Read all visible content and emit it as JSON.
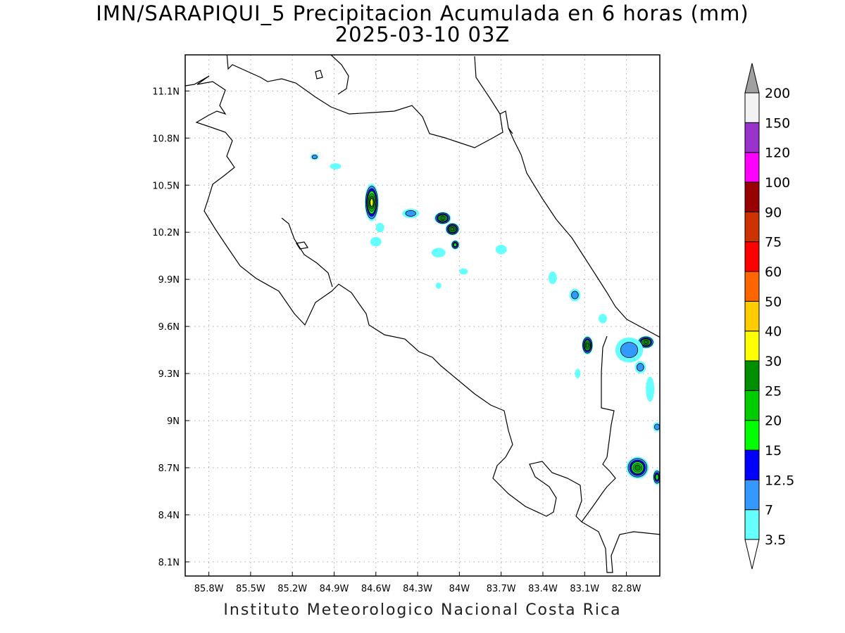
{
  "title": {
    "line1": "IMN/SARAPIQUI_5 Precipitacion Acumulada en 6 horas (mm)",
    "line2": "2025-03-10 03Z"
  },
  "footer": "Instituto Meteorologico Nacional Costa Rica",
  "map": {
    "lon_range": [
      -85.97,
      -82.56
    ],
    "lat_range": [
      8.01,
      11.33
    ],
    "lon_ticks": [
      {
        "value": -85.8,
        "label": "85.8W"
      },
      {
        "value": -85.5,
        "label": "85.5W"
      },
      {
        "value": -85.2,
        "label": "85.2W"
      },
      {
        "value": -84.9,
        "label": "84.9W"
      },
      {
        "value": -84.6,
        "label": "84.6W"
      },
      {
        "value": -84.3,
        "label": "84.3W"
      },
      {
        "value": -84.0,
        "label": "84W"
      },
      {
        "value": -83.7,
        "label": "83.7W"
      },
      {
        "value": -83.4,
        "label": "83.4W"
      },
      {
        "value": -83.1,
        "label": "83.1W"
      },
      {
        "value": -82.8,
        "label": "82.8W"
      }
    ],
    "lat_ticks": [
      {
        "value": 11.1,
        "label": "11.1N"
      },
      {
        "value": 10.8,
        "label": "10.8N"
      },
      {
        "value": 10.5,
        "label": "10.5N"
      },
      {
        "value": 10.2,
        "label": "10.2N"
      },
      {
        "value": 9.9,
        "label": "9.9N"
      },
      {
        "value": 9.6,
        "label": "9.6N"
      },
      {
        "value": 9.3,
        "label": "9.3N"
      },
      {
        "value": 9.0,
        "label": "9N"
      },
      {
        "value": 8.7,
        "label": "8.7N"
      },
      {
        "value": 8.4,
        "label": "8.4N"
      },
      {
        "value": 8.1,
        "label": "8.1N"
      }
    ],
    "grid": true
  },
  "colorbar": {
    "levels": [
      "3.5",
      "7",
      "12.5",
      "15",
      "20",
      "25",
      "30",
      "40",
      "50",
      "60",
      "75",
      "90",
      "100",
      "120",
      "150",
      "200"
    ],
    "colors": [
      "#66ffff",
      "#3399ff",
      "#0000ff",
      "#00ff00",
      "#00cc00",
      "#008f00",
      "#ffff00",
      "#ffcc00",
      "#ff6600",
      "#ff0000",
      "#cc3300",
      "#990000",
      "#ff00ff",
      "#9933cc",
      "#f2f2f2"
    ],
    "under_color": "#ffffff",
    "over_color": "#a0a0a0"
  },
  "precip_cells": [
    {
      "lon": -84.63,
      "lat": 10.39,
      "rx": 0.05,
      "ry": 0.12,
      "level": 30
    },
    {
      "lon": -84.12,
      "lat": 10.29,
      "rx": 0.06,
      "ry": 0.04,
      "level": 25
    },
    {
      "lon": -84.05,
      "lat": 10.22,
      "rx": 0.05,
      "ry": 0.04,
      "level": 25
    },
    {
      "lon": -84.03,
      "lat": 10.12,
      "rx": 0.03,
      "ry": 0.03,
      "level": 15
    },
    {
      "lon": -84.35,
      "lat": 10.32,
      "rx": 0.06,
      "ry": 0.03,
      "level": 7
    },
    {
      "lon": -84.6,
      "lat": 10.14,
      "rx": 0.04,
      "ry": 0.03,
      "level": 3.5
    },
    {
      "lon": -84.57,
      "lat": 10.23,
      "rx": 0.03,
      "ry": 0.03,
      "level": 3.5
    },
    {
      "lon": -85.04,
      "lat": 10.68,
      "rx": 0.03,
      "ry": 0.02,
      "level": 7
    },
    {
      "lon": -84.89,
      "lat": 10.62,
      "rx": 0.04,
      "ry": 0.02,
      "level": 3.5
    },
    {
      "lon": -83.7,
      "lat": 10.09,
      "rx": 0.04,
      "ry": 0.03,
      "level": 3.5
    },
    {
      "lon": -84.15,
      "lat": 10.07,
      "rx": 0.05,
      "ry": 0.03,
      "level": 3.5
    },
    {
      "lon": -83.97,
      "lat": 9.95,
      "rx": 0.03,
      "ry": 0.02,
      "level": 3.5
    },
    {
      "lon": -84.15,
      "lat": 9.86,
      "rx": 0.02,
      "ry": 0.02,
      "level": 3.5
    },
    {
      "lon": -83.33,
      "lat": 9.91,
      "rx": 0.03,
      "ry": 0.04,
      "level": 3.5
    },
    {
      "lon": -83.17,
      "lat": 9.8,
      "rx": 0.04,
      "ry": 0.04,
      "level": 7
    },
    {
      "lon": -83.08,
      "lat": 9.48,
      "rx": 0.04,
      "ry": 0.06,
      "level": 25
    },
    {
      "lon": -82.97,
      "lat": 9.65,
      "rx": 0.03,
      "ry": 0.03,
      "level": 3.5
    },
    {
      "lon": -82.66,
      "lat": 9.5,
      "rx": 0.06,
      "ry": 0.04,
      "level": 25
    },
    {
      "lon": -82.78,
      "lat": 9.45,
      "rx": 0.1,
      "ry": 0.08,
      "level": 7
    },
    {
      "lon": -82.7,
      "lat": 9.34,
      "rx": 0.04,
      "ry": 0.04,
      "level": 7
    },
    {
      "lon": -82.63,
      "lat": 9.2,
      "rx": 0.03,
      "ry": 0.08,
      "level": 3.5
    },
    {
      "lon": -83.15,
      "lat": 9.3,
      "rx": 0.02,
      "ry": 0.03,
      "level": 3.5
    },
    {
      "lon": -82.72,
      "lat": 8.7,
      "rx": 0.08,
      "ry": 0.07,
      "level": 25
    },
    {
      "lon": -82.58,
      "lat": 8.64,
      "rx": 0.03,
      "ry": 0.05,
      "level": 15
    },
    {
      "lon": -82.58,
      "lat": 8.96,
      "rx": 0.03,
      "ry": 0.03,
      "level": 7
    }
  ]
}
